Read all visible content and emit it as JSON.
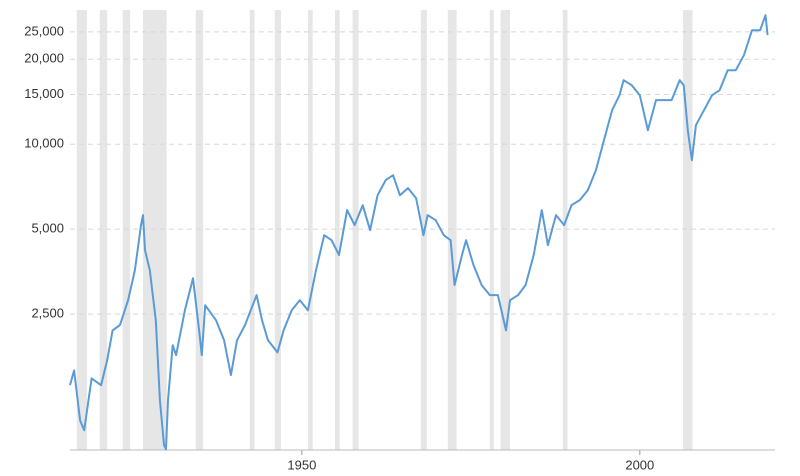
{
  "chart_data": {
    "type": "line",
    "log_y": true,
    "grid": true,
    "color": "#5b9bd5",
    "band_color": "#e6e6e6",
    "xlim": [
      1915.7,
      2020
    ],
    "ylim": [
      825,
      29900
    ],
    "xticks": [
      1950,
      2000
    ],
    "yticks": [
      {
        "value": 2500,
        "label": "2,500"
      },
      {
        "value": 5000,
        "label": "5,000"
      },
      {
        "value": 10000,
        "label": "10,000"
      },
      {
        "value": 15000,
        "label": "15,000"
      },
      {
        "value": 20000,
        "label": "20,000"
      },
      {
        "value": 25000,
        "label": "25,000"
      }
    ],
    "recessions": [
      [
        1916.7,
        1918.2
      ],
      [
        1920.1,
        1921.2
      ],
      [
        1923.5,
        1924.6
      ],
      [
        1926.5,
        1930.0
      ],
      [
        1934.3,
        1935.4
      ],
      [
        1942.3,
        1943.0
      ],
      [
        1946.0,
        1946.9
      ],
      [
        1950.9,
        1951.6
      ],
      [
        1954.9,
        1955.6
      ],
      [
        1957.5,
        1958.4
      ],
      [
        1967.6,
        1968.5
      ],
      [
        1971.6,
        1972.9
      ],
      [
        1977.8,
        1978.4
      ],
      [
        1979.4,
        1980.8
      ],
      [
        1988.6,
        1989.3
      ],
      [
        2006.4,
        2007.8
      ]
    ],
    "x": [
      1915.7,
      1916.3,
      1917.2,
      1917.8,
      1918.9,
      1920.3,
      1921.2,
      1922.0,
      1923.1,
      1924.3,
      1925.3,
      1926.2,
      1926.5,
      1926.8,
      1927.5,
      1928.4,
      1929.0,
      1929.6,
      1929.9,
      1930.2,
      1930.9,
      1931.4,
      1932.7,
      1933.9,
      1934.8,
      1935.2,
      1935.7,
      1937.3,
      1938.5,
      1939.5,
      1940.4,
      1941.6,
      1943.3,
      1944.1,
      1945.0,
      1946.4,
      1947.3,
      1948.5,
      1949.7,
      1950.9,
      1952.1,
      1953.3,
      1954.4,
      1955.5,
      1956.7,
      1957.8,
      1959.0,
      1960.1,
      1961.2,
      1962.4,
      1963.5,
      1964.5,
      1965.7,
      1966.9,
      1968.0,
      1968.6,
      1969.8,
      1971.0,
      1972.0,
      1972.6,
      1973.7,
      1974.3,
      1975.4,
      1976.6,
      1977.8,
      1979.0,
      1980.2,
      1980.8,
      1982.0,
      1983.1,
      1984.3,
      1985.5,
      1986.4,
      1987.6,
      1988.8,
      1989.9,
      1991.1,
      1992.3,
      1993.5,
      1994.7,
      1995.9,
      1997.0,
      1997.6,
      1998.8,
      2000.0,
      2001.2,
      2002.4,
      2003.6,
      2004.7,
      2005.9,
      2006.5,
      2007.1,
      2007.7,
      2008.3,
      2009.5,
      2010.7,
      2011.8,
      2013.0,
      2014.2,
      2015.4,
      2016.6,
      2017.8,
      2018.6,
      2018.9
    ],
    "values": [
      1400,
      1580,
      1050,
      970,
      1480,
      1400,
      1720,
      2190,
      2290,
      2800,
      3580,
      5170,
      5610,
      4210,
      3580,
      2380,
      1240,
      860,
      830,
      1240,
      1940,
      1790,
      2580,
      3350,
      2190,
      1790,
      2690,
      2380,
      2020,
      1520,
      2020,
      2290,
      2920,
      2380,
      2020,
      1830,
      2190,
      2580,
      2800,
      2580,
      3580,
      4760,
      4570,
      4050,
      5840,
      5170,
      6080,
      4960,
      6600,
      7460,
      7770,
      6600,
      6990,
      6440,
      4760,
      5610,
      5380,
      4760,
      4570,
      3170,
      4050,
      4570,
      3730,
      3170,
      2920,
      2920,
      2190,
      2800,
      2920,
      3170,
      4050,
      5840,
      4390,
      5610,
      5170,
      6080,
      6340,
      6870,
      8090,
      10340,
      13200,
      14920,
      16860,
      16190,
      14920,
      11210,
      14330,
      14330,
      14330,
      16860,
      16190,
      11210,
      8780,
      11680,
      13200,
      14920,
      15540,
      18290,
      18290,
      20670,
      25340,
      25340,
      28650,
      24350
    ]
  }
}
